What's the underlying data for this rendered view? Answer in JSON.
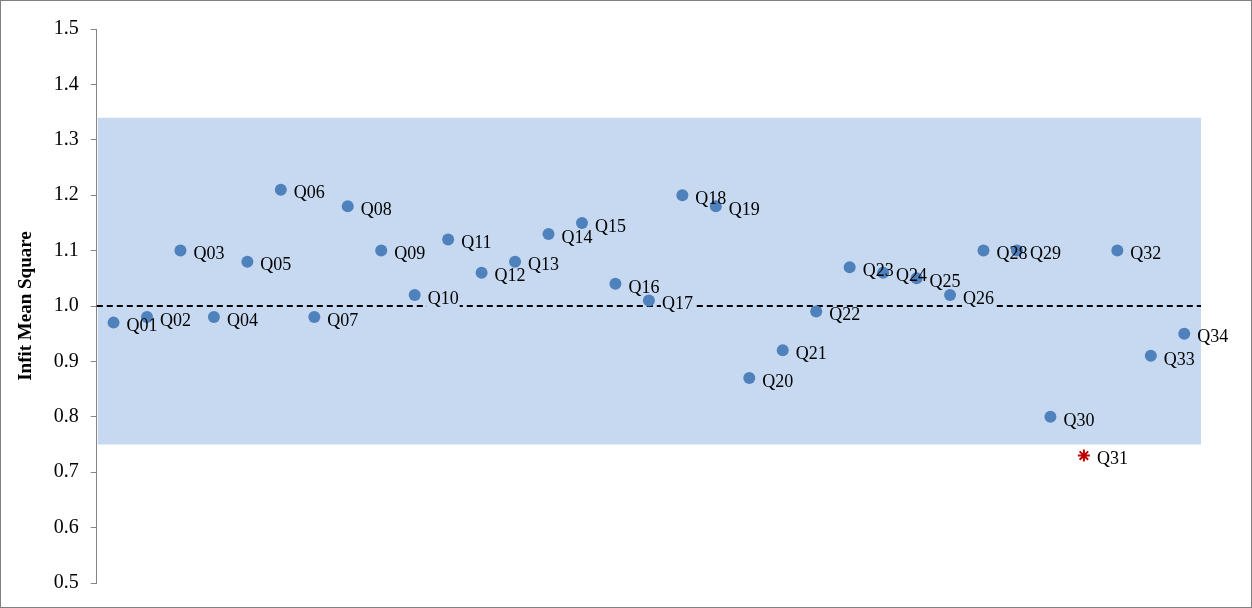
{
  "chart_data": {
    "type": "scatter",
    "ylabel": "Infit Mean Square",
    "categories": [
      null,
      null,
      null,
      null,
      null,
      null,
      null,
      null,
      null,
      null,
      null,
      null,
      null,
      null,
      null,
      null,
      null,
      null,
      null,
      null,
      null,
      null,
      null,
      null,
      null,
      null,
      null,
      null,
      null,
      null,
      null,
      null,
      null
    ],
    "series": [
      {
        "color": "#4f81bd",
        "marker": "circle",
        "values": [
          0.97,
          0.98,
          1.1,
          0.98,
          1.08,
          1.21,
          0.98,
          1.18,
          1.1,
          1.02,
          1.12,
          1.06,
          1.08,
          1.13,
          1.15,
          1.04,
          1.01,
          1.2,
          1.18,
          0.87,
          0.92,
          0.99,
          1.07,
          1.06,
          1.05,
          1.02,
          1.1,
          1.1,
          0.8,
          null,
          1.1,
          0.91,
          0.95
        ],
        "value_labels": [
          "Q01",
          "Q02",
          "Q03",
          "Q04",
          "Q05",
          "Q06",
          "Q07",
          "Q08",
          "Q09",
          "Q10",
          "Q11",
          "Q12",
          "Q13",
          "Q14",
          "Q15",
          "Q16",
          "Q17",
          "Q18",
          "Q19",
          "Q20",
          "Q21",
          "Q22",
          "Q23",
          "Q24",
          "Q25",
          "Q26",
          "Q28",
          "Q29",
          "Q30",
          null,
          "Q32",
          "Q33",
          "Q34"
        ]
      },
      {
        "color": "#c00000",
        "marker": "cross",
        "values": [
          null,
          null,
          null,
          null,
          null,
          null,
          null,
          null,
          null,
          null,
          null,
          null,
          null,
          null,
          null,
          null,
          null,
          null,
          null,
          null,
          null,
          null,
          null,
          null,
          null,
          null,
          null,
          null,
          null,
          0.73,
          null,
          null,
          null
        ],
        "value_labels": [
          null,
          null,
          null,
          null,
          null,
          null,
          null,
          null,
          null,
          null,
          null,
          null,
          null,
          null,
          null,
          null,
          null,
          null,
          null,
          null,
          null,
          null,
          null,
          null,
          null,
          null,
          null,
          null,
          null,
          "Q31",
          null,
          null,
          null
        ]
      }
    ],
    "ylim": [
      0.5,
      1.5
    ],
    "yticks": [
      0.5,
      0.6,
      0.7,
      0.8,
      0.9,
      {
        "value": 1.0,
        "label": "1.0"
      },
      1.1,
      1.2,
      1.3,
      1.4,
      1.5
    ],
    "ref_lines": [
      {
        "axis": "y",
        "value": 1.0,
        "color": "#000000",
        "line_style": "dashed"
      }
    ],
    "bands": [
      {
        "axis": "y",
        "from": 0.75,
        "to": 1.34,
        "color": "#c6d9f0"
      }
    ],
    "grid": false,
    "legend": false,
    "tick_labels": "y"
  }
}
